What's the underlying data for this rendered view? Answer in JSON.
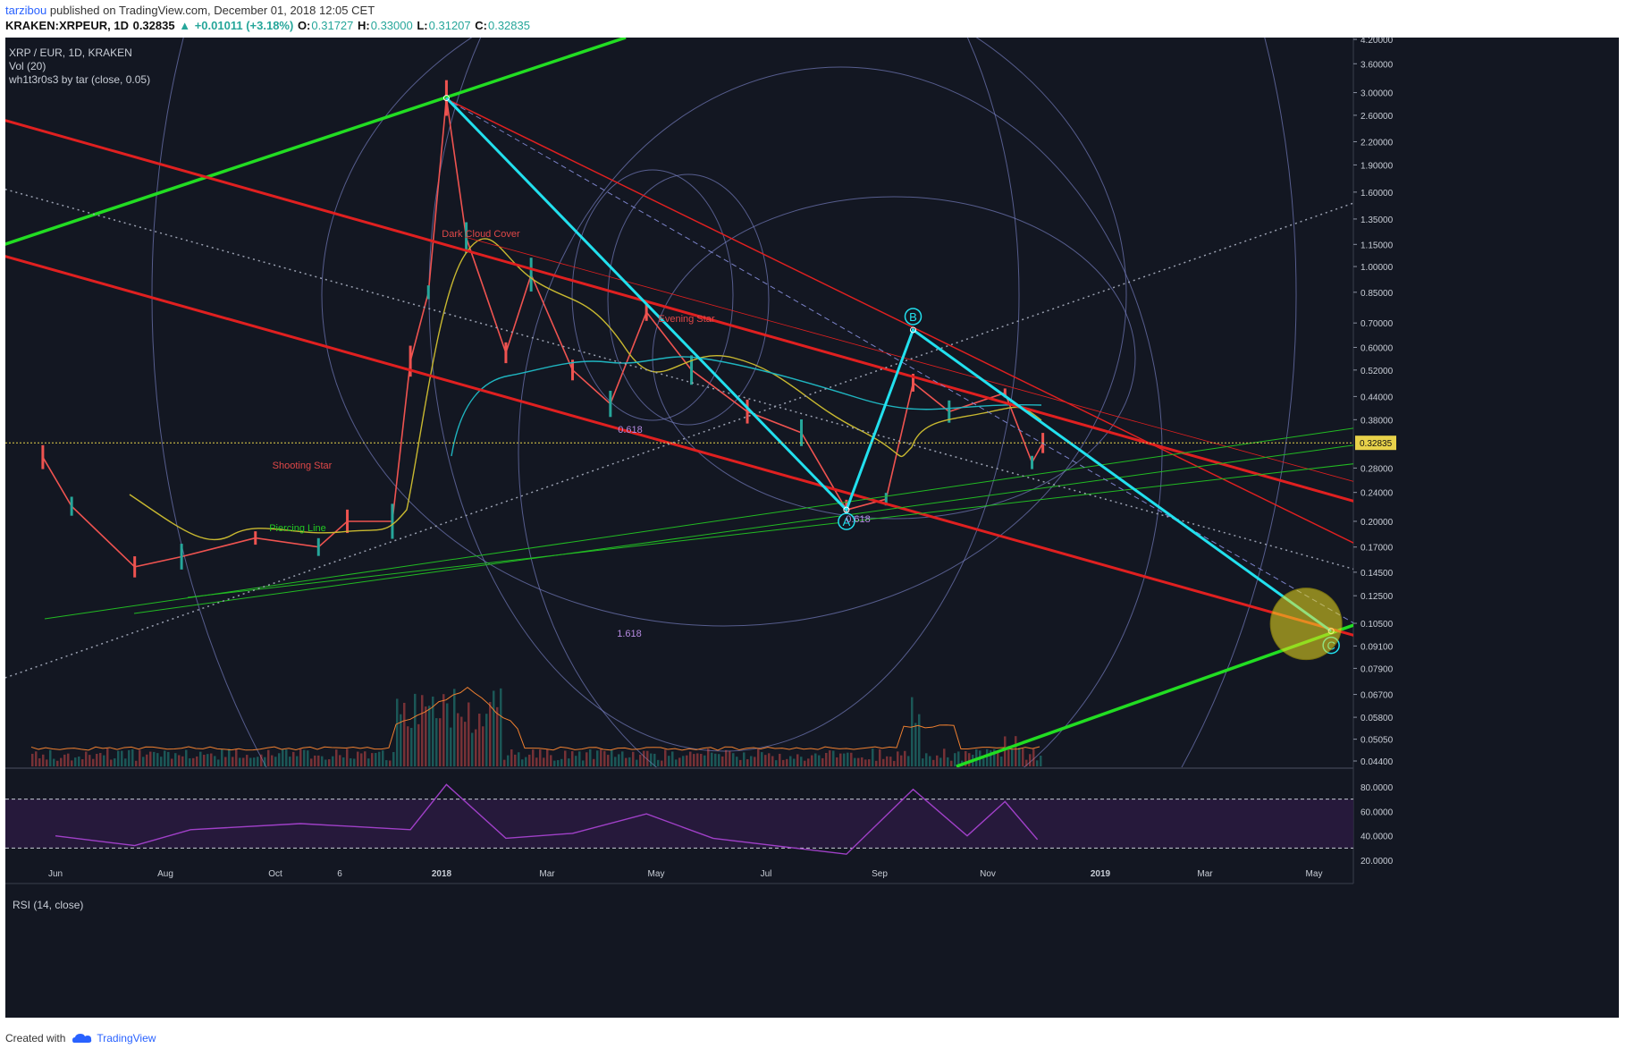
{
  "header": {
    "author": "tarzibou",
    "published": "published on TradingView.com, December 01, 2018 12:05 CET",
    "symbol": "KRAKEN:XRPEUR, 1D",
    "price": "0.32835",
    "change": "+0.01011 (+3.18%)",
    "open_label": "O:",
    "open": "0.31727",
    "high_label": "H:",
    "high": "0.33000",
    "low_label": "L:",
    "low": "0.31207",
    "close_label": "C:",
    "close": "0.32835",
    "up_arrow": "▲"
  },
  "legend": {
    "pair": "XRP / EUR, 1D, KRAKEN",
    "volume": "Vol (20)",
    "indicator": "wh1t3r0s3 by tar (close, 0.05)"
  },
  "rsi": {
    "label": "RSI (14, close)"
  },
  "footer": {
    "created": "Created with",
    "brand": "TradingView",
    "logo_icon": "tradingview-cloud-icon"
  },
  "colors": {
    "background": "#131722",
    "red_channel": "#e02020",
    "green_trend": "#22dd22",
    "cyan_wave": "#22e0ee",
    "yellow_ma": "#c8b830",
    "teal_ma": "#1fb5c0",
    "fib_circle": "#7b82c8",
    "rsi": "#a040c8",
    "candle_up": "#26a69a",
    "candle_down": "#ef5350",
    "price_line": "#e8d24a",
    "highlight": "#f0e020"
  },
  "chart_data": {
    "type": "line",
    "title": "XRP / EUR, 1D, KRAKEN",
    "scale": "log",
    "ylim": [
      0.044,
      4.2
    ],
    "price_axis_ticks": [
      "4.20000",
      "3.60000",
      "3.00000",
      "2.60000",
      "2.20000",
      "1.90000",
      "1.60000",
      "1.35000",
      "1.15000",
      "1.00000",
      "0.85000",
      "0.70000",
      "0.60000",
      "0.52000",
      "0.44000",
      "0.38000",
      "0.32835",
      "0.28000",
      "0.24000",
      "0.20000",
      "0.17000",
      "0.14500",
      "0.12500",
      "0.10500",
      "0.09100",
      "0.07900",
      "0.06700",
      "0.05800",
      "0.05050",
      "0.04400"
    ],
    "current_price": "0.32835",
    "time_axis_ticks": [
      "Jun",
      "Aug",
      "Oct",
      "6",
      "2018",
      "Mar",
      "May",
      "Jul",
      "Sep",
      "Nov",
      "2019",
      "Mar",
      "May"
    ],
    "series": [
      {
        "name": "XRP/EUR close",
        "x": [
          "2017-05-25",
          "2017-06-10",
          "2017-07-15",
          "2017-08-10",
          "2017-09-20",
          "2017-10-25",
          "2017-11-10",
          "2017-12-05",
          "2017-12-15",
          "2017-12-25",
          "2018-01-04",
          "2018-01-15",
          "2018-02-06",
          "2018-02-20",
          "2018-03-15",
          "2018-04-05",
          "2018-04-25",
          "2018-05-20",
          "2018-06-20",
          "2018-07-20",
          "2018-08-14",
          "2018-09-05",
          "2018-09-20",
          "2018-10-10",
          "2018-11-10",
          "2018-11-25",
          "2018-12-01"
        ],
        "y": [
          0.3,
          0.22,
          0.15,
          0.16,
          0.18,
          0.17,
          0.2,
          0.2,
          0.55,
          0.85,
          2.9,
          1.2,
          0.58,
          0.95,
          0.52,
          0.42,
          0.75,
          0.52,
          0.4,
          0.35,
          0.215,
          0.23,
          0.48,
          0.4,
          0.45,
          0.29,
          0.328
        ]
      }
    ],
    "annotations": [
      {
        "text": "Dark Cloud Cover"
      },
      {
        "text": "Evening Star"
      },
      {
        "text": "Shooting Star"
      },
      {
        "text": "Piercing Line"
      },
      {
        "text": "0.618"
      },
      {
        "text": "1.618"
      },
      {
        "text": "A"
      },
      {
        "text": "B"
      },
      {
        "text": "C"
      },
      {
        "text": "0.618"
      }
    ],
    "wave_points": [
      {
        "label": "",
        "date": "2018-01-04",
        "price": 2.9
      },
      {
        "label": "A",
        "date": "2018-08-14",
        "price": 0.215
      },
      {
        "label": "B",
        "date": "2018-09-20",
        "price": 0.67
      },
      {
        "label": "C",
        "date": "2019-05-10",
        "price": 0.1
      }
    ],
    "rsi": {
      "ylim": [
        15,
        90
      ],
      "ticks": [
        "80.0000",
        "60.0000",
        "40.0000",
        "20.0000"
      ],
      "bands": [
        30,
        70
      ],
      "x": [
        "2017-06-01",
        "2017-07-15",
        "2017-08-15",
        "2017-10-15",
        "2017-12-15",
        "2018-01-04",
        "2018-02-06",
        "2018-03-15",
        "2018-04-25",
        "2018-06-01",
        "2018-08-14",
        "2018-09-20",
        "2018-10-20",
        "2018-11-10",
        "2018-11-28"
      ],
      "values": [
        40,
        32,
        45,
        50,
        45,
        82,
        38,
        42,
        58,
        38,
        25,
        78,
        40,
        68,
        37
      ]
    }
  }
}
